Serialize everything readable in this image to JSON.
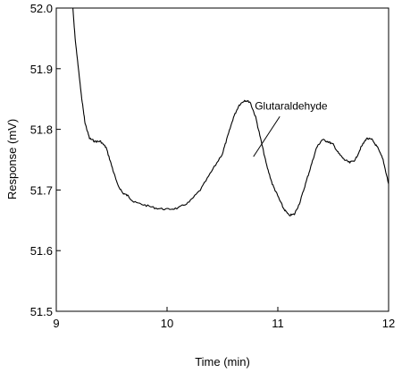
{
  "chart_data": {
    "type": "line",
    "title": "",
    "xlabel": "Time (min)",
    "ylabel": "Response (mV)",
    "xlim": [
      9,
      12
    ],
    "ylim": [
      51.5,
      52.0
    ],
    "x_ticks": [
      9,
      10,
      11,
      12
    ],
    "x_tick_labels": [
      "9",
      "10",
      "11",
      "12"
    ],
    "y_ticks": [
      51.5,
      51.6,
      51.7,
      51.8,
      51.9,
      52.0
    ],
    "y_tick_labels": [
      "51.5",
      "51.6",
      "51.7",
      "51.8",
      "51.9",
      "52.0"
    ],
    "grid": false,
    "legend": "none",
    "line_color": "#000000",
    "series": [
      {
        "x": [
          9.15,
          9.17,
          9.2,
          9.23,
          9.26,
          9.3,
          9.35,
          9.4,
          9.45,
          9.5,
          9.55,
          9.6,
          9.65,
          9.7,
          9.8,
          9.9,
          10.0,
          10.1,
          10.2,
          10.3,
          10.4,
          10.5,
          10.55,
          10.6,
          10.65,
          10.7,
          10.75,
          10.8,
          10.85,
          10.9,
          10.95,
          11.0,
          11.05,
          11.1,
          11.15,
          11.2,
          11.25,
          11.3,
          11.35,
          11.4,
          11.45,
          11.5,
          11.55,
          11.6,
          11.65,
          11.7,
          11.75,
          11.8,
          11.85,
          11.9,
          11.95,
          12.0
        ],
        "y": [
          52.0,
          51.95,
          51.9,
          51.85,
          51.81,
          51.785,
          51.78,
          51.78,
          51.77,
          51.74,
          51.71,
          51.695,
          51.69,
          51.68,
          51.675,
          51.67,
          51.668,
          51.67,
          51.68,
          51.7,
          51.73,
          51.76,
          51.79,
          51.82,
          51.84,
          51.848,
          51.845,
          51.82,
          51.78,
          51.74,
          51.71,
          51.69,
          51.67,
          51.658,
          51.66,
          51.68,
          51.71,
          51.74,
          51.77,
          51.783,
          51.78,
          51.775,
          51.76,
          51.75,
          51.745,
          51.75,
          51.77,
          51.785,
          51.783,
          51.77,
          51.75,
          51.71
        ]
      }
    ],
    "annotations": [
      {
        "text": "Glutaraldehyde",
        "x": 11.05,
        "y": 51.83,
        "point_x": 10.78,
        "point_y": 51.755
      }
    ]
  }
}
